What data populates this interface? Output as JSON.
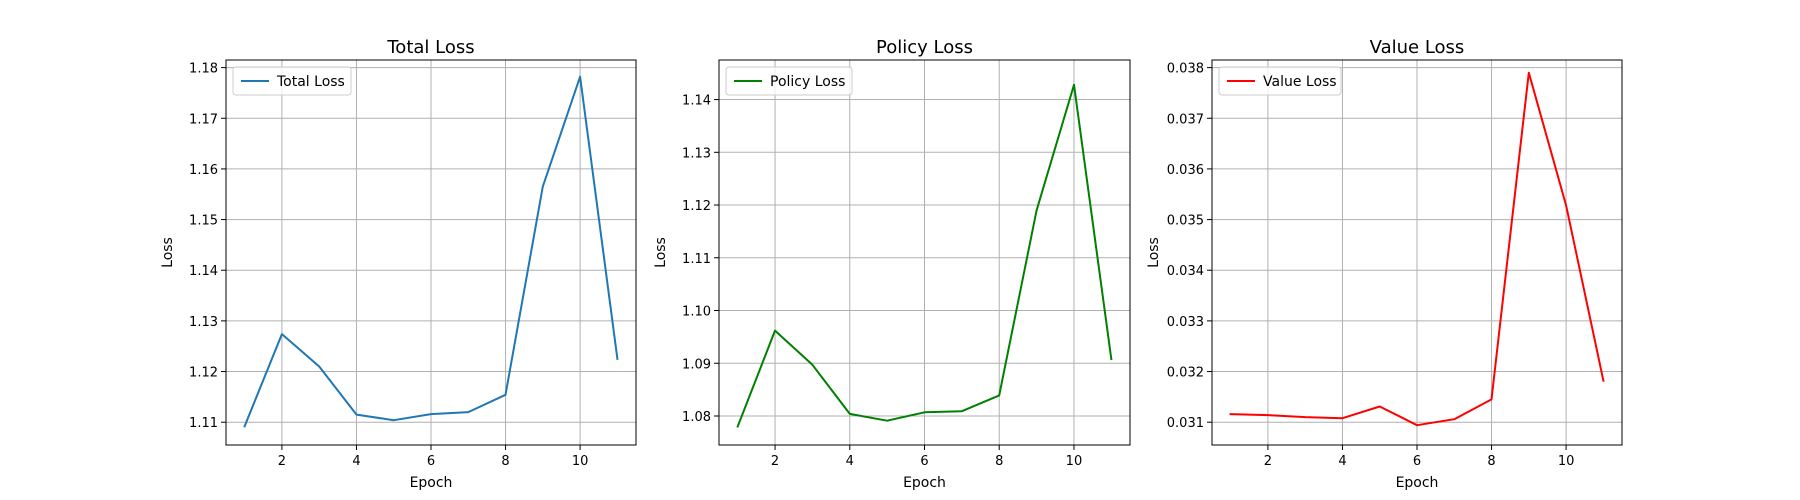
{
  "chart_data": [
    {
      "type": "line",
      "title": "Total Loss",
      "xlabel": "Epoch",
      "ylabel": "Loss",
      "xlim": [
        0.5,
        11.5
      ],
      "ylim": [
        1.1055,
        1.1815
      ],
      "xticks": [
        2,
        4,
        6,
        8,
        10
      ],
      "yticks": [
        1.11,
        1.12,
        1.13,
        1.14,
        1.15,
        1.16,
        1.17,
        1.18
      ],
      "ytick_labels": [
        "1.11",
        "1.12",
        "1.13",
        "1.14",
        "1.15",
        "1.16",
        "1.17",
        "1.18"
      ],
      "grid": true,
      "legend": "top-left",
      "series": [
        {
          "name": "Total Loss",
          "color": "#1f77b4",
          "x": [
            1,
            2,
            3,
            4,
            5,
            6,
            7,
            8,
            9,
            10,
            11
          ],
          "y": [
            1.1092,
            1.1274,
            1.121,
            1.1115,
            1.1104,
            1.1116,
            1.112,
            1.1154,
            1.1565,
            1.1782,
            1.1225
          ]
        }
      ]
    },
    {
      "type": "line",
      "title": "Policy Loss",
      "xlabel": "Epoch",
      "ylabel": "Loss",
      "xlim": [
        0.5,
        11.5
      ],
      "ylim": [
        1.0745,
        1.1475
      ],
      "xticks": [
        2,
        4,
        6,
        8,
        10
      ],
      "yticks": [
        1.08,
        1.09,
        1.1,
        1.11,
        1.12,
        1.13,
        1.14
      ],
      "ytick_labels": [
        "1.08",
        "1.09",
        "1.10",
        "1.11",
        "1.12",
        "1.13",
        "1.14"
      ],
      "grid": true,
      "legend": "top-left",
      "series": [
        {
          "name": "Policy Loss",
          "color": "#008000",
          "x": [
            1,
            2,
            3,
            4,
            5,
            6,
            7,
            8,
            9,
            10,
            11
          ],
          "y": [
            1.078,
            1.0962,
            1.0897,
            1.0804,
            1.0791,
            1.0807,
            1.0809,
            1.0839,
            1.119,
            1.1428,
            1.0908
          ]
        }
      ]
    },
    {
      "type": "line",
      "title": "Value Loss",
      "xlabel": "Epoch",
      "ylabel": "Loss",
      "xlim": [
        0.5,
        11.5
      ],
      "ylim": [
        0.03055,
        0.03815
      ],
      "xticks": [
        2,
        4,
        6,
        8,
        10
      ],
      "yticks": [
        0.031,
        0.032,
        0.033,
        0.034,
        0.035,
        0.036,
        0.037,
        0.038
      ],
      "ytick_labels": [
        "0.031",
        "0.032",
        "0.033",
        "0.034",
        "0.035",
        "0.036",
        "0.037",
        "0.038"
      ],
      "grid": true,
      "legend": "top-left",
      "series": [
        {
          "name": "Value Loss",
          "color": "#ff0000",
          "x": [
            1,
            2,
            3,
            4,
            5,
            6,
            7,
            8,
            9,
            10,
            11
          ],
          "y": [
            0.03116,
            0.03114,
            0.0311,
            0.03108,
            0.03131,
            0.03094,
            0.03106,
            0.03145,
            0.0379,
            0.03528,
            0.03182
          ]
        }
      ]
    }
  ]
}
